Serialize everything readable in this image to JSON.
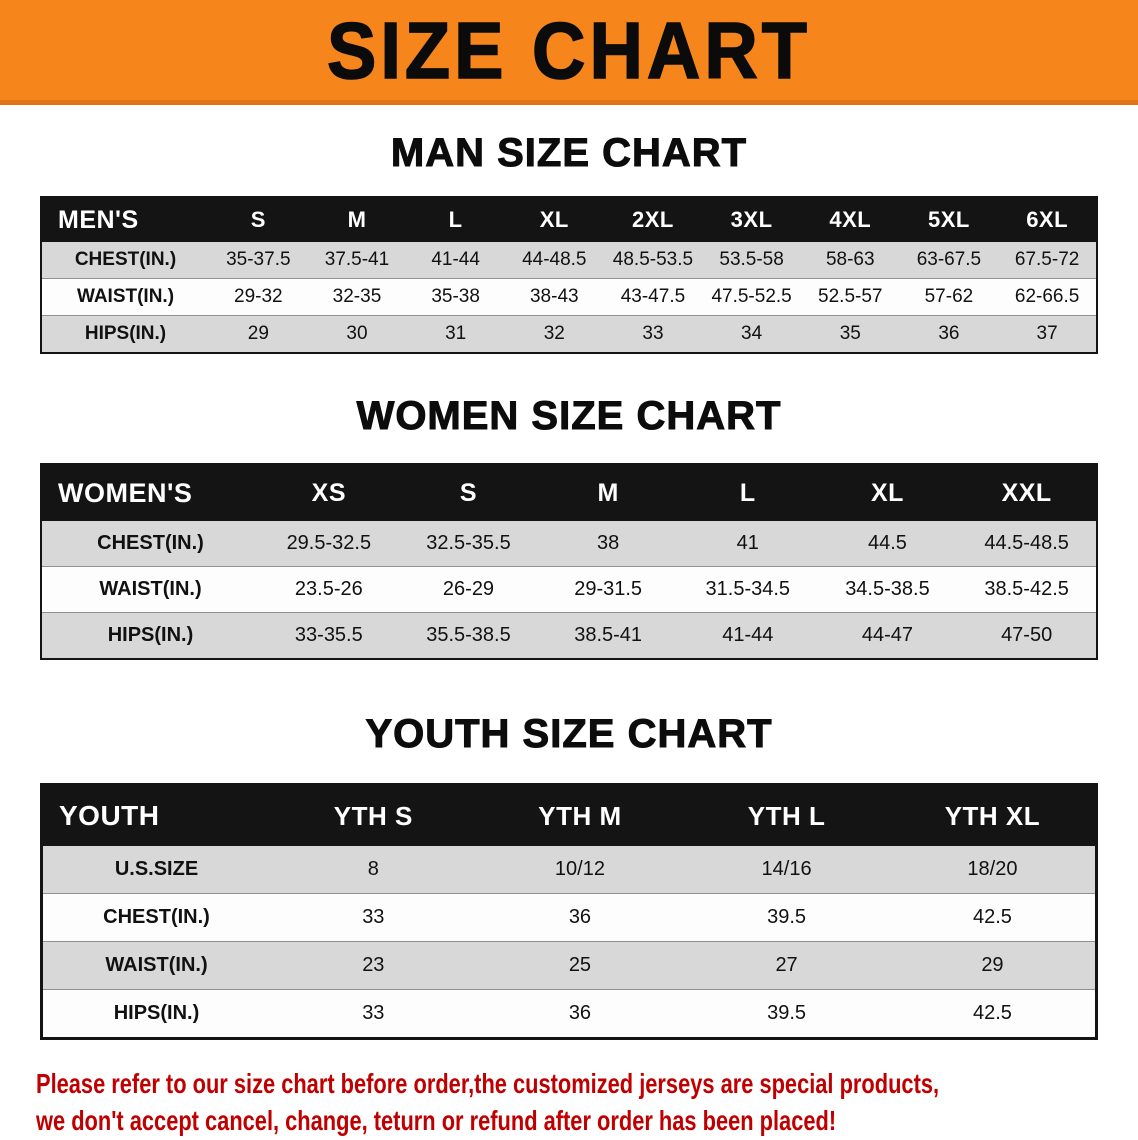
{
  "banner": {
    "title": "SIZE CHART"
  },
  "sections": {
    "men": {
      "heading": "MAN SIZE CHART",
      "table": {
        "header": [
          "MEN'S",
          "S",
          "M",
          "L",
          "XL",
          "2XL",
          "3XL",
          "4XL",
          "5XL",
          "6XL"
        ],
        "rows": [
          {
            "label": "CHEST(IN.)",
            "values": [
              "35-37.5",
              "37.5-41",
              "41-44",
              "44-48.5",
              "48.5-53.5",
              "53.5-58",
              "58-63",
              "63-67.5",
              "67.5-72"
            ]
          },
          {
            "label": "WAIST(IN.)",
            "values": [
              "29-32",
              "32-35",
              "35-38",
              "38-43",
              "43-47.5",
              "47.5-52.5",
              "52.5-57",
              "57-62",
              "62-66.5"
            ]
          },
          {
            "label": "HIPS(IN.)",
            "values": [
              "29",
              "30",
              "31",
              "32",
              "33",
              "34",
              "35",
              "36",
              "37"
            ]
          }
        ]
      }
    },
    "women": {
      "heading": "WOMEN SIZE CHART",
      "table": {
        "header": [
          "WOMEN'S",
          "XS",
          "S",
          "M",
          "L",
          "XL",
          "XXL"
        ],
        "rows": [
          {
            "label": "CHEST(IN.)",
            "values": [
              "29.5-32.5",
              "32.5-35.5",
              "38",
              "41",
              "44.5",
              "44.5-48.5"
            ]
          },
          {
            "label": "WAIST(IN.)",
            "values": [
              "23.5-26",
              "26-29",
              "29-31.5",
              "31.5-34.5",
              "34.5-38.5",
              "38.5-42.5"
            ]
          },
          {
            "label": "HIPS(IN.)",
            "values": [
              "33-35.5",
              "35.5-38.5",
              "38.5-41",
              "41-44",
              "44-47",
              "47-50"
            ]
          }
        ]
      }
    },
    "youth": {
      "heading": "YOUTH SIZE CHART",
      "table": {
        "header": [
          "YOUTH",
          "YTH S",
          "YTH M",
          "YTH L",
          "YTH XL"
        ],
        "rows": [
          {
            "label": "U.S.SIZE",
            "values": [
              "8",
              "10/12",
              "14/16",
              "18/20"
            ]
          },
          {
            "label": "CHEST(IN.)",
            "values": [
              "33",
              "36",
              "39.5",
              "42.5"
            ]
          },
          {
            "label": "WAIST(IN.)",
            "values": [
              "23",
              "25",
              "27",
              "29"
            ]
          },
          {
            "label": "HIPS(IN.)",
            "values": [
              "33",
              "36",
              "39.5",
              "42.5"
            ]
          }
        ]
      }
    }
  },
  "footer": {
    "line1": "Please refer to our size chart before order,the customized jerseys are special products,",
    "line2": "we don't accept cancel, change, teturn or refund after order has been placed!"
  },
  "colors": {
    "banner_bg": "#f6861c",
    "table_header_bg": "#141414",
    "row_stripe": "#d8d8d8",
    "footer_text": "#c00000"
  }
}
